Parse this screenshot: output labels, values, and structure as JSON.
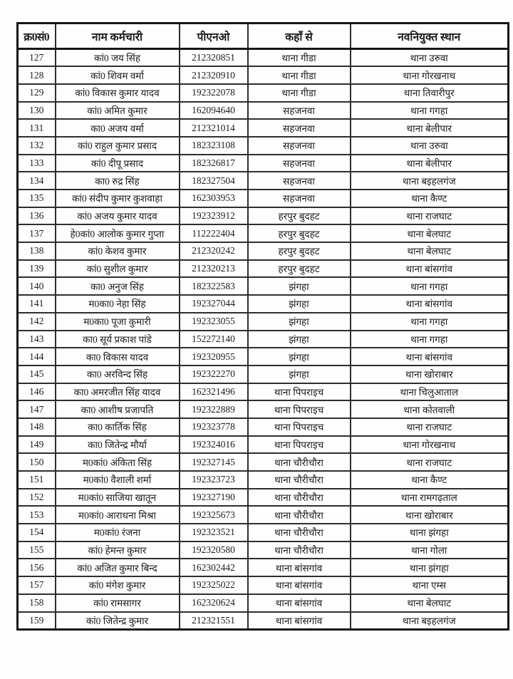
{
  "colors": {
    "background": "#fefefe",
    "text": "#1c1c1c",
    "border": "#161616"
  },
  "table": {
    "columns": [
      {
        "key": "sno",
        "label": "क्र0सं0"
      },
      {
        "key": "name",
        "label": "नाम कर्मचारी"
      },
      {
        "key": "pno",
        "label": "पीएनओ"
      },
      {
        "key": "from",
        "label": "कहाँ से"
      },
      {
        "key": "to",
        "label": "नवनियुक्त स्थान"
      }
    ],
    "rows": [
      {
        "sno": "127",
        "name": "कां0 जय सिंह",
        "pno": "212320851",
        "from": "थाना गीडा",
        "to": "थाना उरुवा"
      },
      {
        "sno": "128",
        "name": "कां0 शिवम वर्मा",
        "pno": "212320910",
        "from": "थाना गीडा",
        "to": "थाना गोरखनाथ"
      },
      {
        "sno": "129",
        "name": "कां0 विकास कुमार यादव",
        "pno": "192322078",
        "from": "थाना गीडा",
        "to": "थाना तिवारीपुर"
      },
      {
        "sno": "130",
        "name": "कां0 अमित कुमार",
        "pno": "162094640",
        "from": "सहजनवा",
        "to": "थाना गगहा"
      },
      {
        "sno": "131",
        "name": "का0 अजय वर्मा",
        "pno": "212321014",
        "from": "सहजनवा",
        "to": "थाना बेलीपार"
      },
      {
        "sno": "132",
        "name": "कां0 राहुल कुमार प्रसाद",
        "pno": "182323108",
        "from": "सहजनवा",
        "to": "थाना उरुवा"
      },
      {
        "sno": "133",
        "name": "कां0 दीपू प्रसाद",
        "pno": "182326817",
        "from": "सहजनवा",
        "to": "थाना बेलीपार"
      },
      {
        "sno": "134",
        "name": "का0 रुद्र सिंह",
        "pno": "182327504",
        "from": "सहजनवा",
        "to": "थाना बइहलगंज"
      },
      {
        "sno": "135",
        "name": "कां0 संदीप कुमार कुशवाहा",
        "pno": "162303953",
        "from": "सहजनवा",
        "to": "थाना कैण्ट"
      },
      {
        "sno": "136",
        "name": "कां0 अजय कुमार यादव",
        "pno": "192323912",
        "from": "हरपुर बुदहट",
        "to": "थाना राजघाट"
      },
      {
        "sno": "137",
        "name": "हे0कां0 आलोक कुमार गुप्ता",
        "pno": "112222404",
        "from": "हरपुर बुदहट",
        "to": "थाना बेलघाट"
      },
      {
        "sno": "138",
        "name": "कां0  केशव कुमार",
        "pno": "212320242",
        "from": "हरपुर बुदहट",
        "to": "थाना बेलघाट"
      },
      {
        "sno": "139",
        "name": "कां0  सुशील कुमार",
        "pno": "212320213",
        "from": "हरपुर बुदहट",
        "to": "थाना बांसगांव"
      },
      {
        "sno": "140",
        "name": "का0 अनुज सिंह",
        "pno": "182322583",
        "from": "झंगहा",
        "to": "थाना गगहा"
      },
      {
        "sno": "141",
        "name": "म0का0 नेहा सिंह",
        "pno": "192327044",
        "from": "झंगहा",
        "to": "थाना बांसगांव"
      },
      {
        "sno": "142",
        "name": "म0का0 पूजा कुमारी",
        "pno": "192323055",
        "from": "झंगहा",
        "to": "थाना गगहा"
      },
      {
        "sno": "143",
        "name": "का0 सूर्य प्रकाश पांडे",
        "pno": "152272140",
        "from": "झंगहा",
        "to": "थाना गगहा"
      },
      {
        "sno": "144",
        "name": "का0 विकास यादव",
        "pno": "192320955",
        "from": "झंगहा",
        "to": "थाना बांसगांव"
      },
      {
        "sno": "145",
        "name": "का0 अरविन्द सिंह",
        "pno": "192322270",
        "from": "झंगहा",
        "to": "थाना खोराबार"
      },
      {
        "sno": "146",
        "name": "का0 अमरजीत सिंह यादव",
        "pno": "162321496",
        "from": "थाना पिपराइच",
        "to": "थाना चिलुआताल"
      },
      {
        "sno": "147",
        "name": "का0 आशीष प्रजापति",
        "pno": "192322889",
        "from": "थाना पिपराइच",
        "to": "थाना कोतवाली"
      },
      {
        "sno": "148",
        "name": "का0 कार्तिक सिंह",
        "pno": "192323778",
        "from": "थाना पिपराइच",
        "to": "थाना राजघाट"
      },
      {
        "sno": "149",
        "name": "का0 जितेन्द्र मौर्या",
        "pno": "192324016",
        "from": "थाना पिपराइच",
        "to": "थाना गोरखनाथ"
      },
      {
        "sno": "150",
        "name": "म0कां0 अंकिता सिंह",
        "pno": "192327145",
        "from": "थाना चौरीचौरा",
        "to": "थाना राजघाट"
      },
      {
        "sno": "151",
        "name": "म0कां0 वैशाली शर्मा",
        "pno": "192323723",
        "from": "थाना चौरीचौरा",
        "to": "थाना कैण्ट"
      },
      {
        "sno": "152",
        "name": "म0कां0 साजिया खातून",
        "pno": "192327190",
        "from": "थाना चौरीचौरा",
        "to": "थाना रामगढ़ताल"
      },
      {
        "sno": "153",
        "name": "म0कां0 आराधना मिश्रा",
        "pno": "192325673",
        "from": "थाना चौरीचौरा",
        "to": "थाना खोराबार"
      },
      {
        "sno": "154",
        "name": "म0कां0 रंजना",
        "pno": "192323521",
        "from": "थाना चौरीचौरा",
        "to": "थाना झंगहा"
      },
      {
        "sno": "155",
        "name": "कां0 हेमन्त कुमार",
        "pno": "192320580",
        "from": "थाना चौरीचौरा",
        "to": "थाना गोला"
      },
      {
        "sno": "156",
        "name": "कां0  अजित कुमार बिन्द",
        "pno": "162302442",
        "from": "थाना बांसगांव",
        "to": "थाना झंगहा"
      },
      {
        "sno": "157",
        "name": "कां0 मंगेश कुमार",
        "pno": "192325022",
        "from": "थाना बांसगांव",
        "to": "थाना एम्स"
      },
      {
        "sno": "158",
        "name": "कां0 रामसागर",
        "pno": "162320624",
        "from": "थाना बांसगांव",
        "to": "थाना बेलघाट"
      },
      {
        "sno": "159",
        "name": "कां0  जितेन्द्र कुमार",
        "pno": "212321551",
        "from": "थाना बांसगांव",
        "to": "थाना बइहलगंज"
      }
    ]
  }
}
